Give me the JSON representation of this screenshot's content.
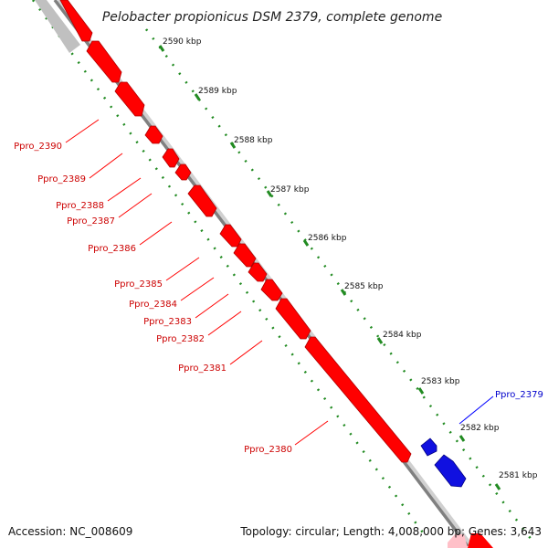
{
  "title": "Pelobacter propionicus DSM 2379, complete genome",
  "footer": {
    "accession": "Accession: NC_008609",
    "summary": "Topology: circular; Length: 4,008,000 bp; Genes: 3,643"
  },
  "colors": {
    "forward_gene": "#ff0000",
    "reverse_gene": "#1010e0",
    "backbone": "#808080",
    "tick": "#228b22",
    "faded_gene": "#c0c0c0"
  },
  "scale_labels": [
    "2590 kbp",
    "2589 kbp",
    "2588 kbp",
    "2587 kbp",
    "2586 kbp",
    "2585 kbp",
    "2584 kbp",
    "2583 kbp",
    "2582 kbp",
    "2581 kbp"
  ],
  "gene_labels": {
    "reverse": [
      "Ppro_2390",
      "Ppro_2389",
      "Ppro_2388",
      "Ppro_2387",
      "Ppro_2386",
      "Ppro_2385",
      "Ppro_2384",
      "Ppro_2383",
      "Ppro_2382",
      "Ppro_2381",
      "Ppro_2380"
    ],
    "forward": [
      "Ppro_2379"
    ]
  }
}
